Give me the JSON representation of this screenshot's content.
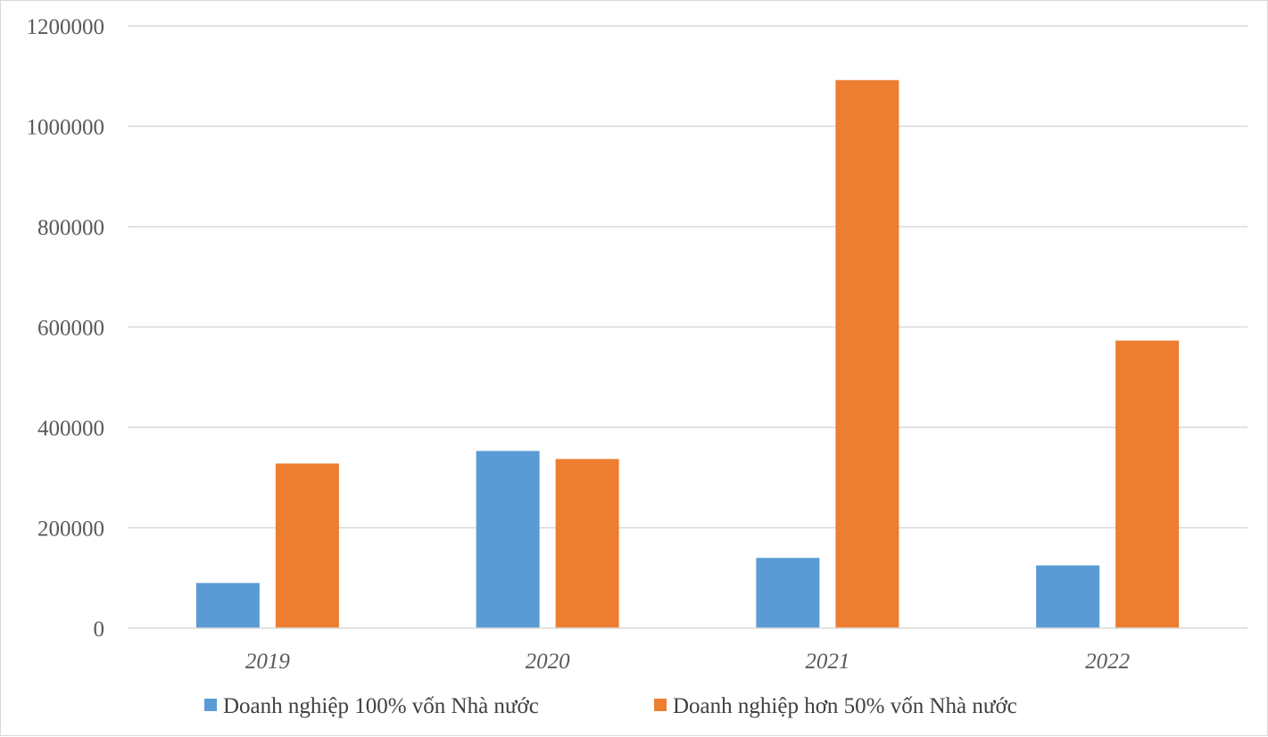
{
  "chart_data": {
    "type": "bar",
    "title": "",
    "xlabel": "",
    "ylabel": "",
    "categories": [
      "2019",
      "2020",
      "2021",
      "2022"
    ],
    "series": [
      {
        "name": "Doanh nghiệp 100% vốn Nhà nước",
        "color": "#5b9bd5",
        "values": [
          90000,
          353000,
          140000,
          125000
        ]
      },
      {
        "name": "Doanh nghiệp hơn 50% vốn Nhà nước",
        "color": "#ed7d31",
        "values": [
          328000,
          337000,
          1092000,
          573000
        ]
      }
    ],
    "ylim": [
      0,
      1200000
    ],
    "yticks": [
      "0",
      "200000",
      "400000",
      "600000",
      "800000",
      "1000000",
      "1200000"
    ],
    "grid": true,
    "gridline_color": "#d9d9d9",
    "legend_position": "bottom"
  }
}
